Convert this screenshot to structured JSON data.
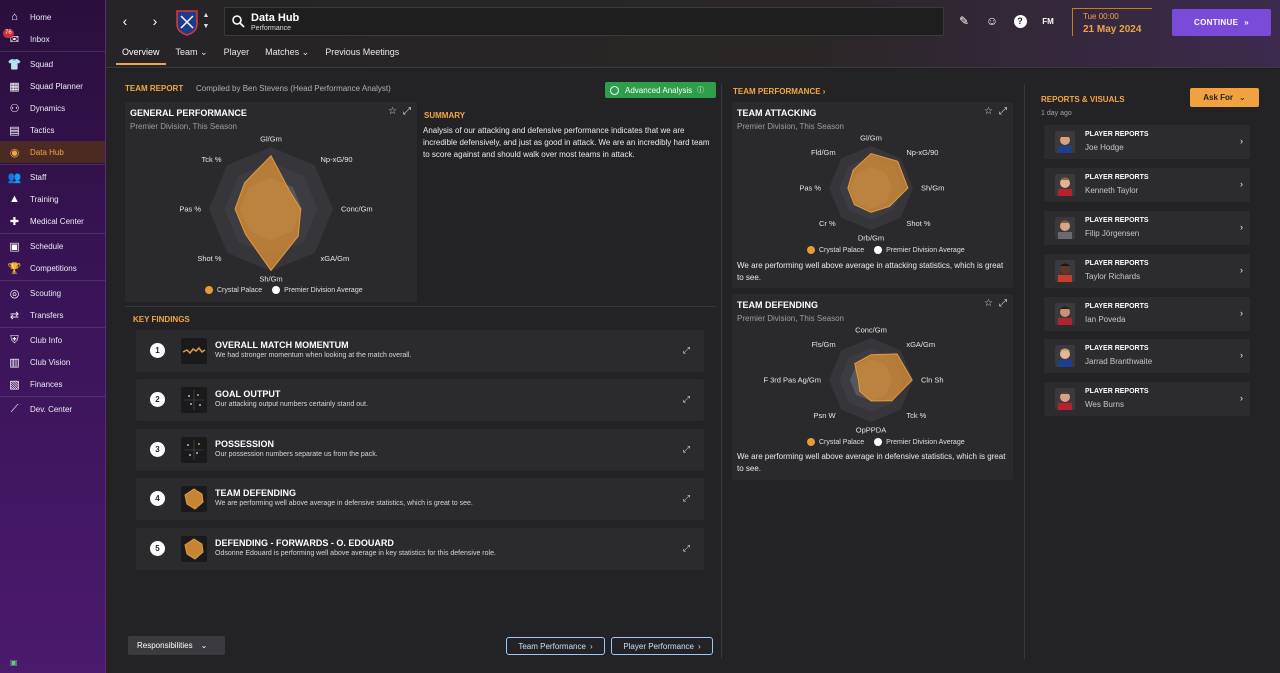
{
  "sidebar": {
    "items": [
      {
        "label": "Home",
        "icon": "home-icon"
      },
      {
        "label": "Inbox",
        "icon": "inbox-icon",
        "badge": "76"
      },
      {
        "label": "Squad",
        "icon": "shirt-icon"
      },
      {
        "label": "Squad Planner",
        "icon": "planner-icon"
      },
      {
        "label": "Dynamics",
        "icon": "dynamics-icon"
      },
      {
        "label": "Tactics",
        "icon": "tactics-icon"
      },
      {
        "label": "Data Hub",
        "icon": "data-hub-icon"
      },
      {
        "label": "Staff",
        "icon": "staff-icon"
      },
      {
        "label": "Training",
        "icon": "training-icon"
      },
      {
        "label": "Medical Center",
        "icon": "medical-icon"
      },
      {
        "label": "Schedule",
        "icon": "calendar-icon"
      },
      {
        "label": "Competitions",
        "icon": "trophy-icon"
      },
      {
        "label": "Scouting",
        "icon": "scouting-icon"
      },
      {
        "label": "Transfers",
        "icon": "transfers-icon"
      },
      {
        "label": "Club Info",
        "icon": "shield-icon"
      },
      {
        "label": "Club Vision",
        "icon": "vision-icon"
      },
      {
        "label": "Finances",
        "icon": "finances-icon"
      },
      {
        "label": "Dev. Center",
        "icon": "dev-center-icon"
      }
    ]
  },
  "header": {
    "title": "Data Hub",
    "subtitle": "Performance",
    "datetime": "Tue 00:00",
    "date": "21 May 2024",
    "continue": "CONTINUE",
    "fm": "FM",
    "tabs": [
      "Overview",
      "Team",
      "Player",
      "Matches",
      "Previous Meetings"
    ]
  },
  "team_report": {
    "heading": "TEAM REPORT",
    "compiled_by": "Compiled by Ben Stevens (Head Performance Analyst)",
    "advanced": "Advanced Analysis",
    "general": {
      "title": "GENERAL PERFORMANCE",
      "sub": "Premier Division, This Season",
      "axes": [
        "Gl/Gm",
        "Np-xG/90",
        "Conc/Gm",
        "xGA/Gm",
        "Sh/Gm",
        "Shot %",
        "Pas %",
        "Tck %"
      ],
      "club": [
        0.86,
        0.42,
        0.48,
        0.62,
        0.99,
        0.58,
        0.58,
        0.6
      ],
      "avg": [
        0.5,
        0.5,
        0.5,
        0.5,
        0.5,
        0.5,
        0.5,
        0.5
      ]
    },
    "summary_h": "SUMMARY",
    "summary": "Analysis of our attacking and defensive performance indicates that we are incredible defensively, and just as good in attack. We are an incredibly hard team to score against and should walk over most teams in attack.",
    "legend_club": "Crystal Palace",
    "legend_avg": "Premier Division Average"
  },
  "key_findings": {
    "heading": "KEY FINDINGS",
    "items": [
      {
        "n": "1",
        "title": "OVERALL MATCH MOMENTUM",
        "desc": "We had stronger momentum when looking at the match overall."
      },
      {
        "n": "2",
        "title": "GOAL OUTPUT",
        "desc": "Our attacking output numbers certainly stand out."
      },
      {
        "n": "3",
        "title": "POSSESSION",
        "desc": "Our possession numbers separate us from the pack."
      },
      {
        "n": "4",
        "title": "TEAM DEFENDING",
        "desc": "We are performing well above average in defensive statistics, which is great to see."
      },
      {
        "n": "5",
        "title": "DEFENDING - FORWARDS - O. EDOUARD",
        "desc": "Odsonne Edouard is performing well above average in key statistics for this defensive role."
      }
    ]
  },
  "bottom": {
    "responsibilities": "Responsibilities",
    "team_perf": "Team Performance",
    "player_perf": "Player Performance"
  },
  "team_performance": {
    "heading": "TEAM PERFORMANCE",
    "attacking": {
      "title": "TEAM ATTACKING",
      "sub": "Premier Division, This Season",
      "axes": [
        "Gl/Gm",
        "Np-xG/90",
        "Sh/Gm",
        "Shot %",
        "Drb/Gm",
        "Cr %",
        "Pas %",
        "Fld/Gm"
      ],
      "club": [
        0.82,
        0.9,
        0.88,
        0.62,
        0.58,
        0.56,
        0.55,
        0.6
      ],
      "avg": [
        0.5,
        0.5,
        0.5,
        0.5,
        0.5,
        0.5,
        0.5,
        0.5
      ],
      "text": "We are performing well above average in attacking statistics, which is great to see."
    },
    "defending": {
      "title": "TEAM DEFENDING",
      "sub": "Premier Division, This Season",
      "axes": [
        "Conc/Gm",
        "xGA/Gm",
        "Cln Sh",
        "Tck %",
        "OpPPDA",
        "Psn W",
        "F 3rd Pas Ag/Gm",
        "Fls/Gm"
      ],
      "club": [
        0.6,
        0.88,
        0.98,
        0.7,
        0.5,
        0.38,
        0.3,
        0.55
      ],
      "avg": [
        0.5,
        0.5,
        0.5,
        0.5,
        0.5,
        0.5,
        0.5,
        0.5
      ],
      "text": "We are performing well above average in defensive statistics, which is great to see."
    }
  },
  "reports": {
    "heading": "REPORTS & VISUALS",
    "ago": "1 day ago",
    "ask": "Ask For",
    "items": [
      {
        "type": "PLAYER REPORTS",
        "name": "Joe Hodge"
      },
      {
        "type": "PLAYER REPORTS",
        "name": "Kenneth Taylor"
      },
      {
        "type": "PLAYER REPORTS",
        "name": "Filip Jörgensen"
      },
      {
        "type": "PLAYER REPORTS",
        "name": "Taylor Richards"
      },
      {
        "type": "PLAYER REPORTS",
        "name": "Ian Poveda"
      },
      {
        "type": "PLAYER REPORTS",
        "name": "Jarrad Branthwaite"
      },
      {
        "type": "PLAYER REPORTS",
        "name": "Wes Burns"
      }
    ]
  },
  "colors": {
    "accent": "#f4a742",
    "club": "#e59a3c",
    "purple": "#7a4ad9"
  }
}
